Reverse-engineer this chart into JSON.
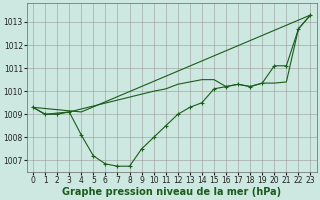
{
  "bg_color": "#cce8e0",
  "grid_color": "#999999",
  "line_color": "#1a5c1a",
  "xlabel": "Graphe pression niveau de la mer (hPa)",
  "xlabel_fontsize": 7.0,
  "tick_fontsize": 5.5,
  "ylim": [
    1006.5,
    1013.8
  ],
  "xlim": [
    -0.5,
    23.5
  ],
  "yticks": [
    1007,
    1008,
    1009,
    1010,
    1011,
    1012,
    1013
  ],
  "xticks": [
    0,
    1,
    2,
    3,
    4,
    5,
    6,
    7,
    8,
    9,
    10,
    11,
    12,
    13,
    14,
    15,
    16,
    17,
    18,
    19,
    20,
    21,
    22,
    23
  ],
  "series_dip": {
    "x": [
      0,
      1,
      2,
      3,
      4,
      5,
      6,
      7,
      8,
      9,
      10,
      11,
      12,
      13,
      14,
      15,
      16,
      17,
      18,
      19,
      20,
      21,
      22,
      23
    ],
    "y": [
      1009.3,
      1009.0,
      1009.0,
      1009.1,
      1008.1,
      1007.2,
      1006.85,
      1006.75,
      1006.75,
      1007.5,
      1008.0,
      1008.5,
      1009.0,
      1009.3,
      1009.5,
      1010.1,
      1010.2,
      1010.3,
      1010.2,
      1010.35,
      1011.1,
      1011.1,
      1012.7,
      1013.3
    ]
  },
  "series_upper": {
    "x": [
      0,
      1,
      2,
      3,
      10,
      11,
      12,
      13,
      14,
      15,
      16,
      17,
      18,
      19,
      20,
      21,
      22,
      23
    ],
    "y": [
      1009.3,
      1009.0,
      1009.05,
      1009.1,
      1010.0,
      1010.1,
      1010.3,
      1010.4,
      1010.5,
      1010.5,
      1010.2,
      1010.3,
      1010.2,
      1010.35,
      1010.35,
      1010.4,
      1012.7,
      1013.3
    ]
  },
  "series_straight": {
    "x": [
      0,
      4,
      23
    ],
    "y": [
      1009.3,
      1009.1,
      1013.3
    ]
  }
}
